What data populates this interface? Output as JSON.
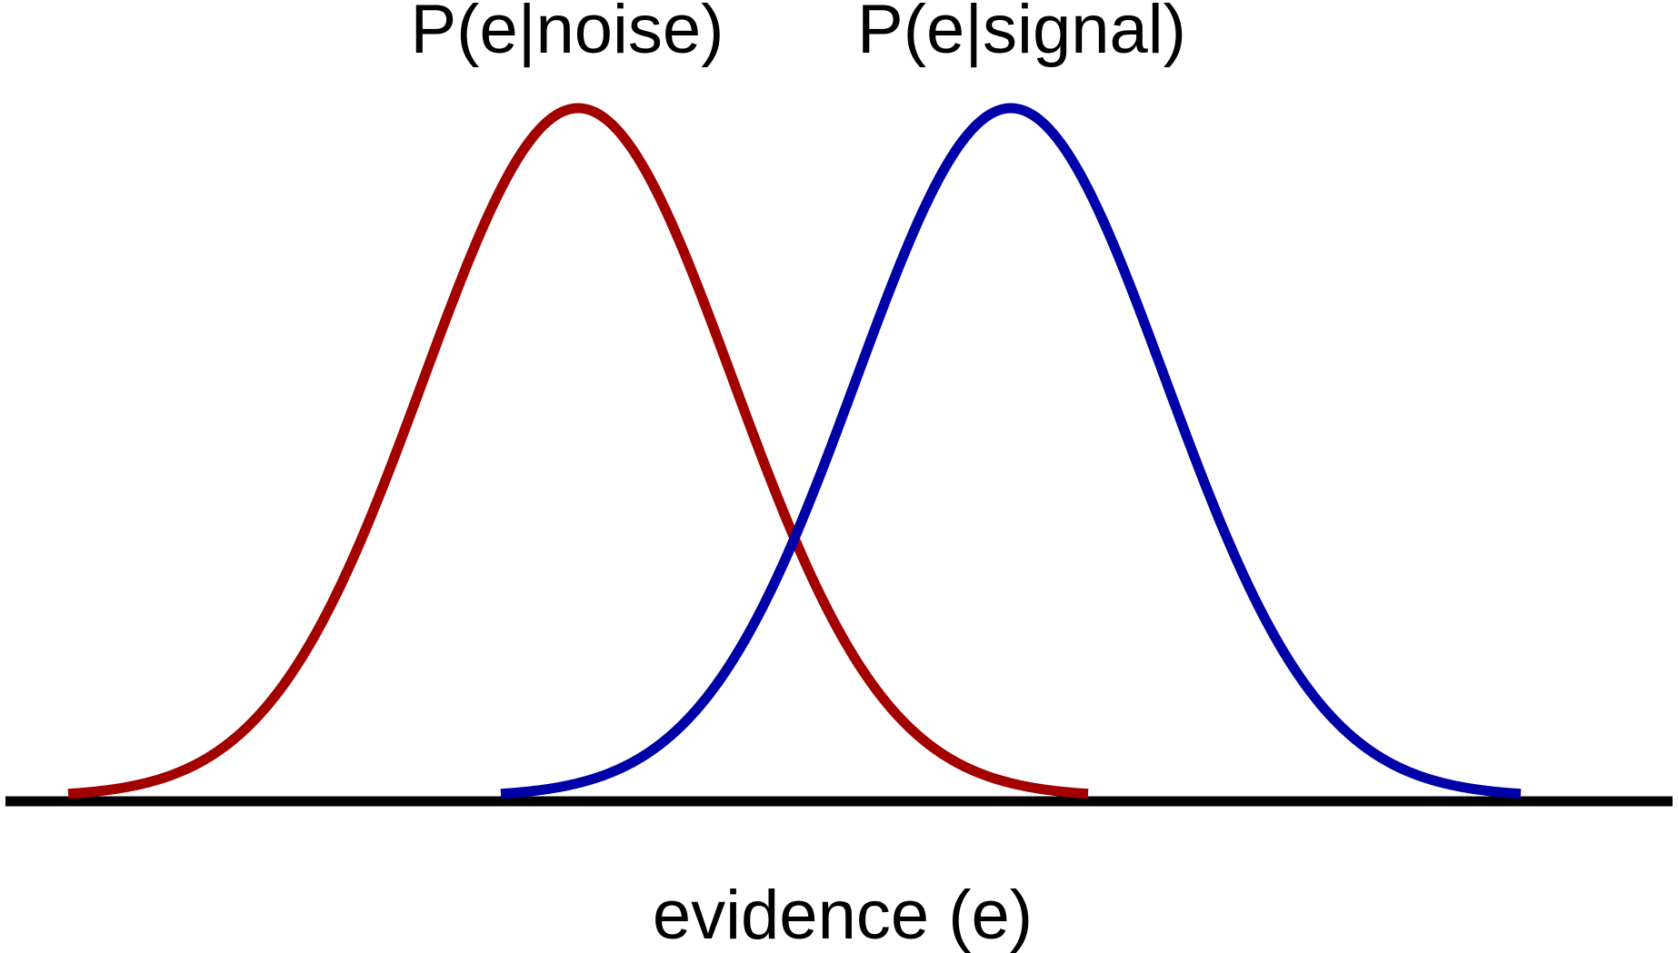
{
  "chart_data": {
    "type": "line",
    "title": "",
    "xlabel": "evidence (e)",
    "ylabel": "",
    "grid": false,
    "axis_color": "#000000",
    "series": [
      {
        "name": "P(e|noise)",
        "color": "#a30000",
        "mean": 0,
        "sd": 1,
        "x_range": [
          -3.3,
          3.3
        ]
      },
      {
        "name": "P(e|signal)",
        "color": "#0000a8",
        "mean": 2.8,
        "sd": 1,
        "x_range": [
          -0.5,
          6.1
        ]
      }
    ]
  }
}
